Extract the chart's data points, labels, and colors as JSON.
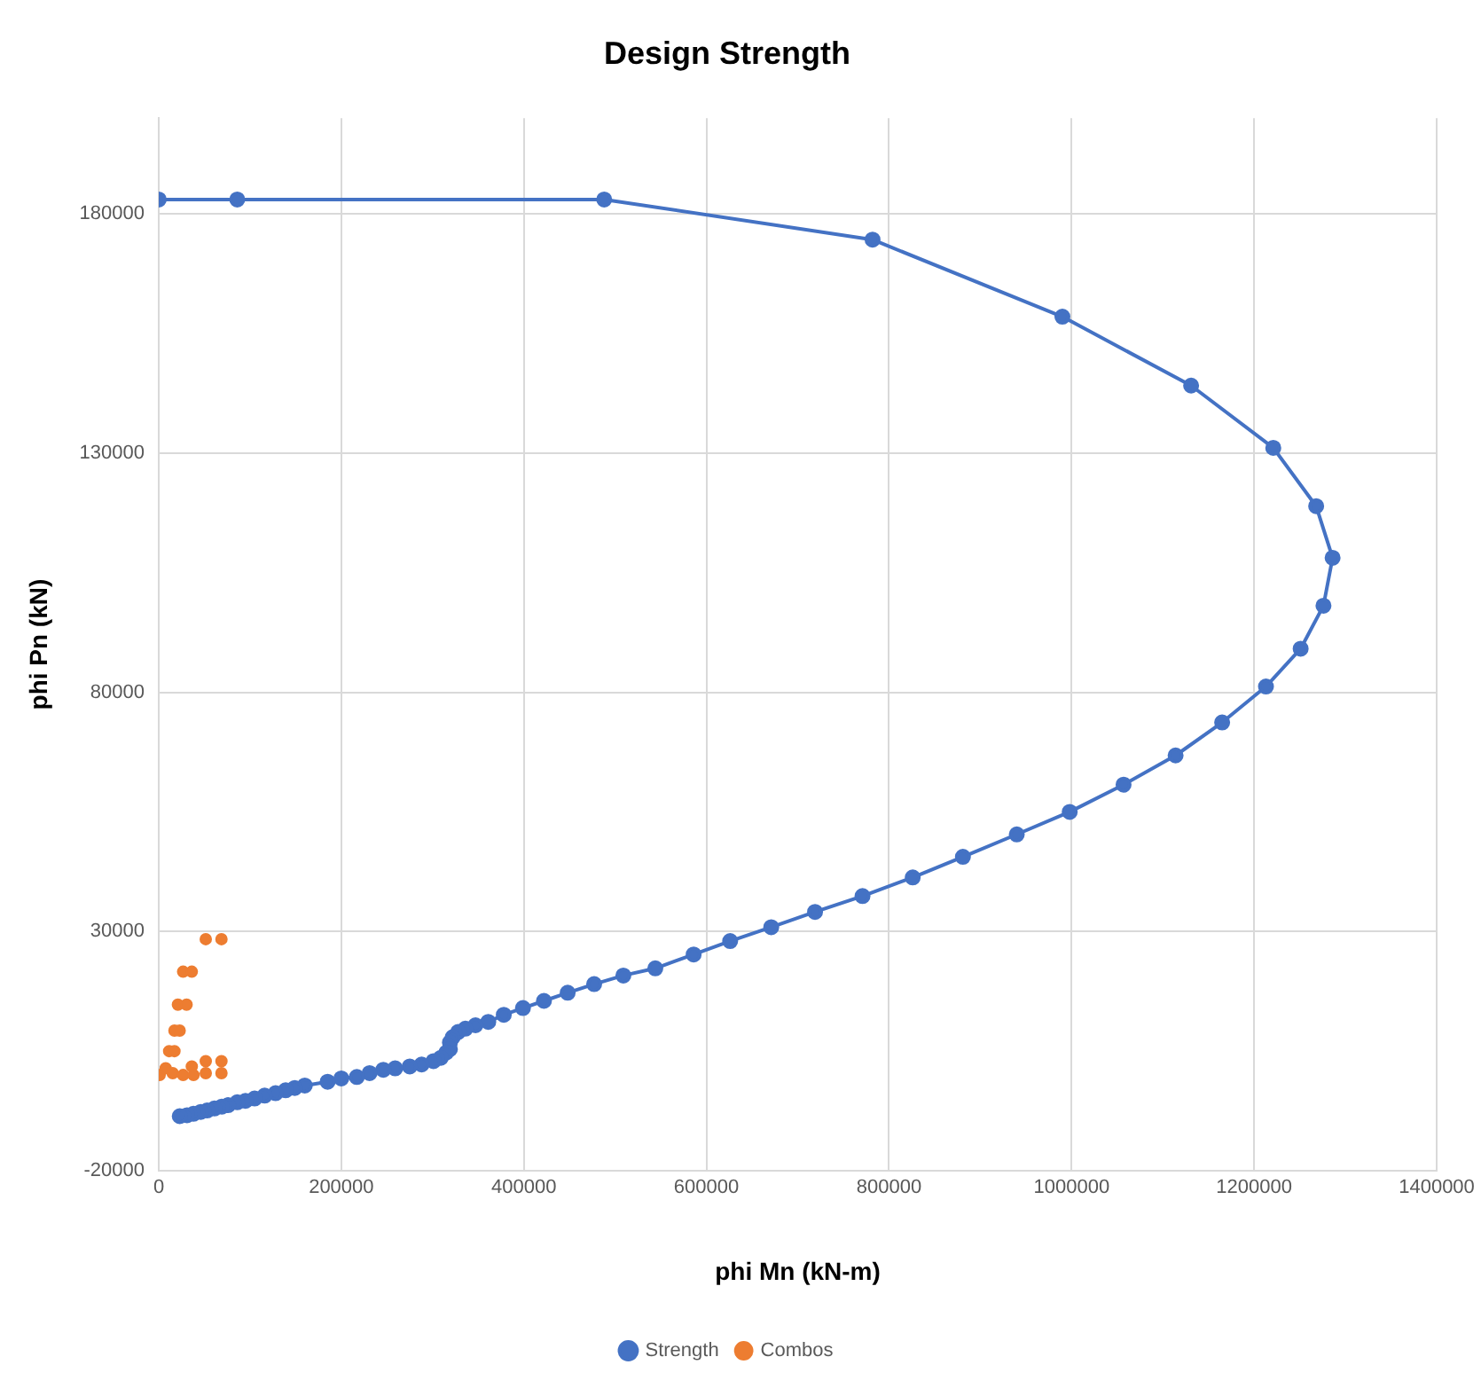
{
  "chart_data": {
    "type": "line",
    "title": "Design Strength",
    "xlabel": "phi Mn (kN-m)",
    "ylabel": "phi Pn (kN)",
    "xlim": [
      0,
      1400000
    ],
    "xticks": [
      0,
      200000,
      400000,
      600000,
      800000,
      1000000,
      1200000,
      1400000
    ],
    "ylim": [
      -20000,
      200000
    ],
    "yticks": [
      -20000,
      30000,
      80000,
      130000,
      180000
    ],
    "grid": true,
    "legend": "bottom",
    "marker": "circle",
    "line_style": "solid",
    "series": [
      {
        "name": "Strength",
        "type": "line",
        "color": "#4472c4",
        "x": [
          0,
          86000,
          488000,
          782000,
          990000,
          1131000,
          1221000,
          1268000,
          1286000,
          1276000,
          1251000,
          1213000,
          1165000,
          1114000,
          1057000,
          998000,
          940000,
          881000,
          826000,
          771000,
          719000,
          671000,
          626000,
          586000,
          544000,
          509000,
          477000,
          448000,
          422000,
          399000,
          378000,
          361000,
          347000,
          336000,
          328000,
          322000,
          319000,
          319000,
          315000,
          309000,
          301000,
          288000,
          275000,
          259000,
          246000,
          231000,
          217000,
          200000,
          185000,
          160000,
          149000,
          139000,
          128000,
          116000,
          105000,
          95000,
          86000,
          76000,
          69000,
          61000,
          53000,
          46000,
          38000,
          31000,
          23000
        ],
        "values": [
          183000,
          183000,
          183000,
          174600,
          158500,
          144100,
          131100,
          118900,
          108100,
          98100,
          89100,
          81200,
          73700,
          66800,
          60700,
          55000,
          50300,
          45600,
          41300,
          37400,
          34100,
          30900,
          28000,
          25200,
          22300,
          20800,
          19000,
          17200,
          15500,
          14000,
          12600,
          11100,
          10400,
          9700,
          9000,
          7900,
          6800,
          5400,
          4700,
          3600,
          2900,
          2200,
          1800,
          1400,
          1100,
          400,
          -400,
          -700,
          -1400,
          -2200,
          -2700,
          -3200,
          -3800,
          -4300,
          -4900,
          -5400,
          -5700,
          -6300,
          -6600,
          -7000,
          -7400,
          -7700,
          -8100,
          -8400,
          -8600
        ]
      },
      {
        "name": "Combos",
        "type": "scatter",
        "color": "#ed7d31",
        "x": [
          51500,
          68700,
          26700,
          36200,
          21000,
          30500,
          17200,
          22900,
          11400,
          17200,
          51500,
          68700,
          51500,
          68700,
          1000,
          7600,
          15300,
          36200,
          26700,
          38100
        ],
        "values": [
          28400,
          28400,
          21600,
          21600,
          14700,
          14700,
          9300,
          9300,
          5000,
          5000,
          2900,
          2900,
          400,
          400,
          0,
          1400,
          400,
          1800,
          0,
          0
        ]
      }
    ]
  }
}
